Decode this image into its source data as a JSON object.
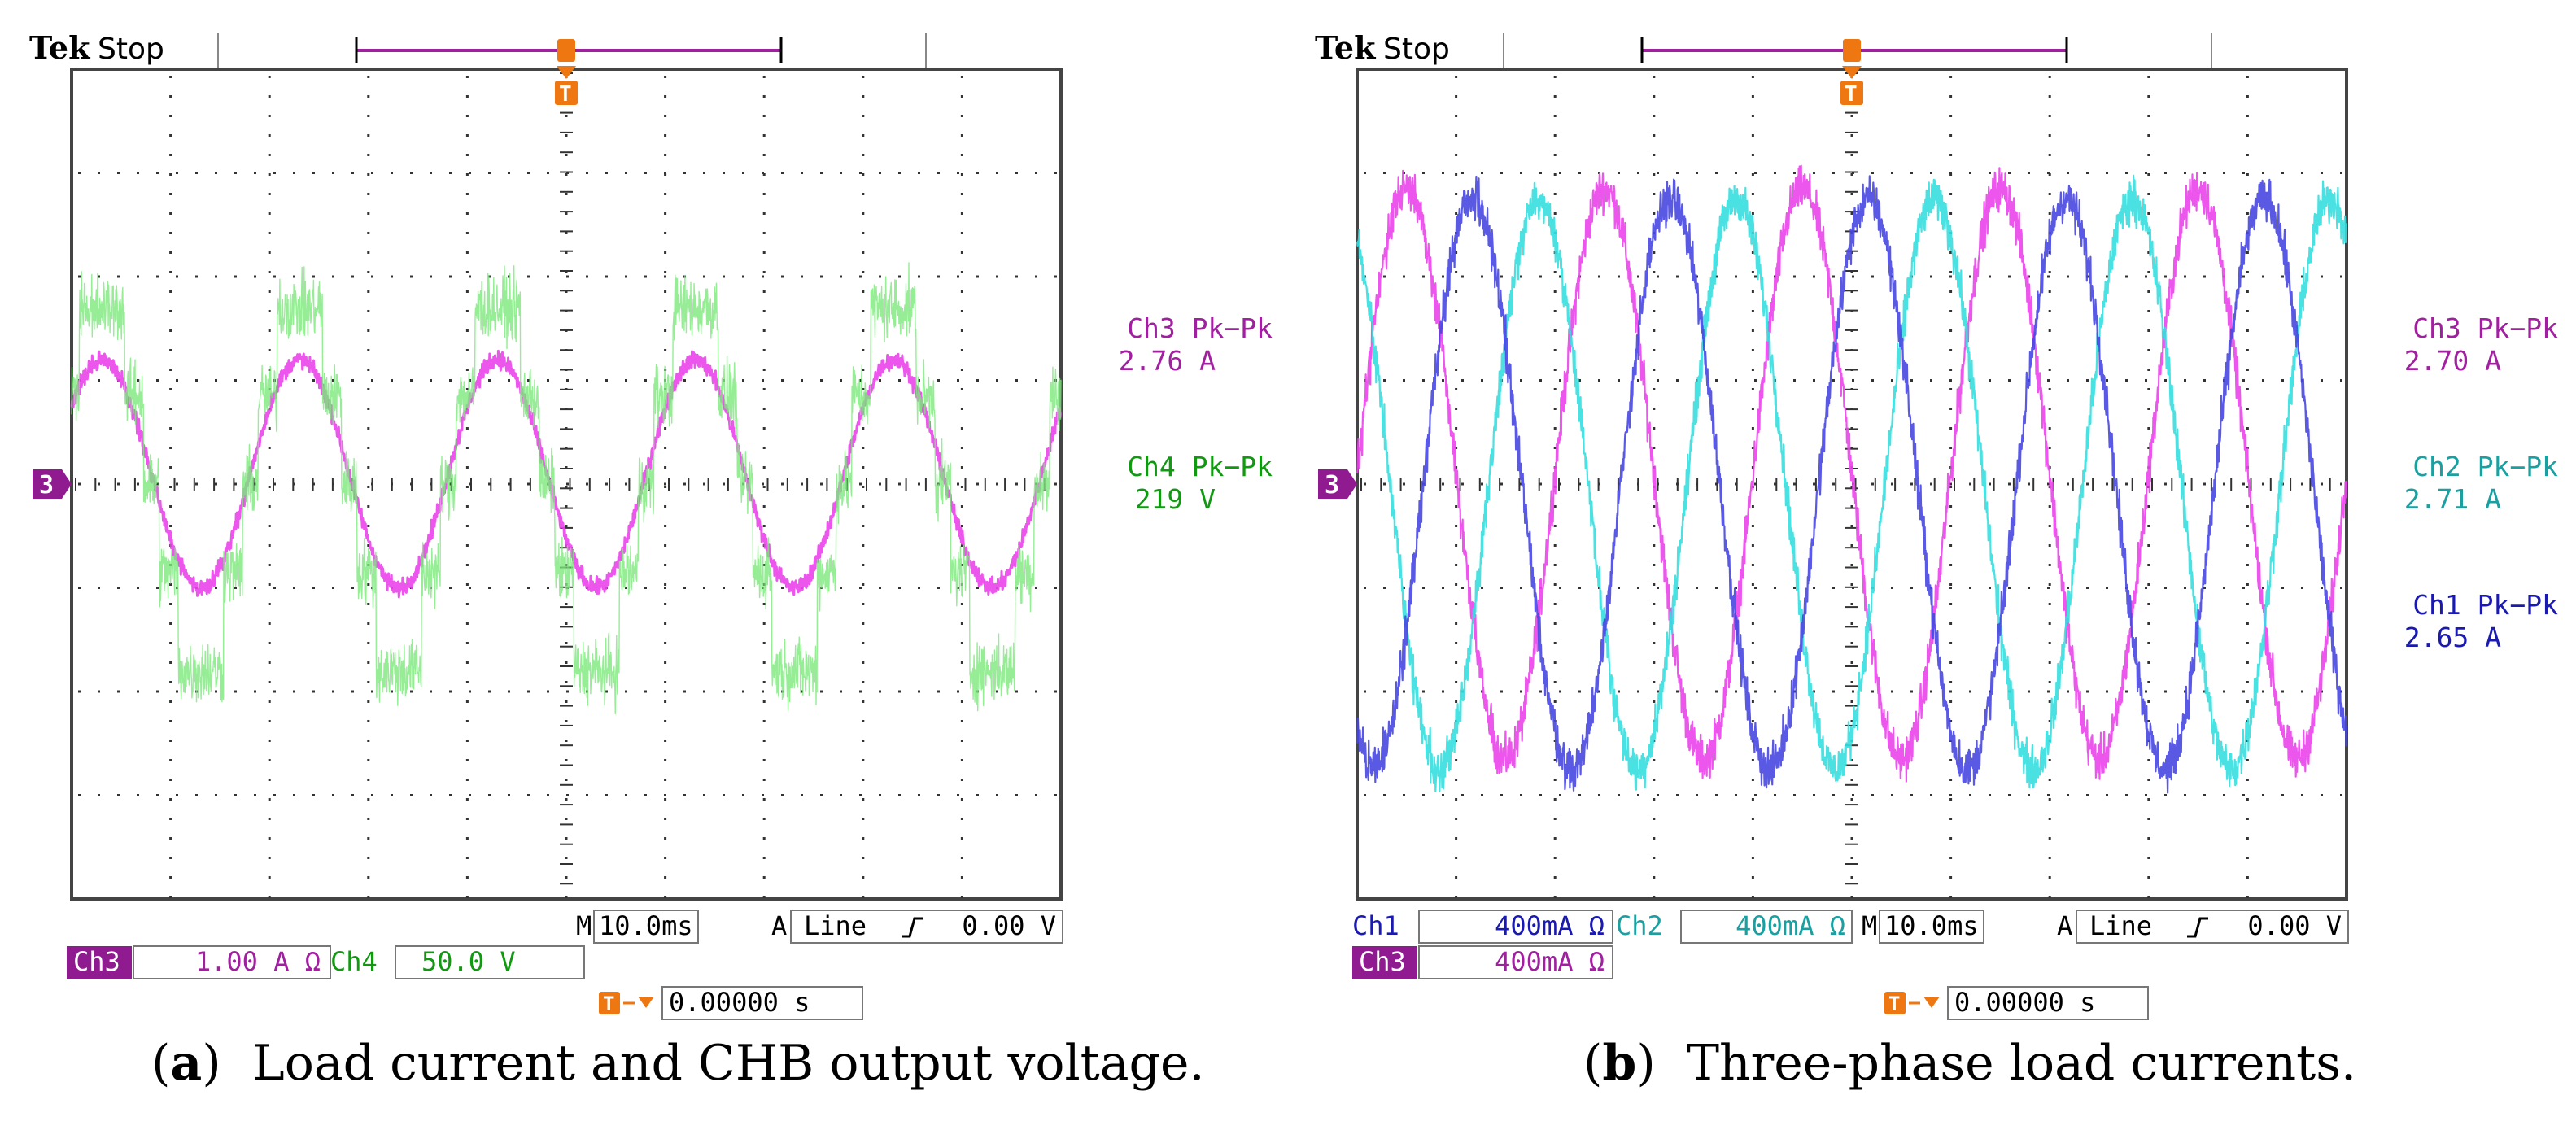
{
  "colors": {
    "ch1": "#4747e0",
    "ch2": "#35dede",
    "ch3": "#ea44ea",
    "ch4": "#22aa22",
    "ch3_text": "#a020a0",
    "ch3_badge": "#901a90",
    "ch4_text": "#119911",
    "ch4_trace": "#7ce87c",
    "ch1_text": "#1a1ab0",
    "ch2_text": "#1aa0a0",
    "trigger": "#ee7711",
    "trigger_bar": "#a020a0",
    "grid": "#000000"
  },
  "chart_data": [
    {
      "type": "line",
      "panel_label": "a",
      "caption": "Load current and CHB output voltage.",
      "header": {
        "brand": "Tek",
        "status": "Stop"
      },
      "time_per_div": "10.0ms",
      "divisions": {
        "x": 10,
        "y": 8
      },
      "x_range_ms": [
        0,
        100
      ],
      "trigger": {
        "source": "Line",
        "slope_icon": "rising-edge-icon",
        "level": "0.00 V",
        "mode_letter": "A",
        "timebase_letter": "M",
        "position": "0.00000 s",
        "marker": "T"
      },
      "ground_marker": "3",
      "channel_settings": [
        {
          "name": "Ch3",
          "scale": "1.00 A Ω"
        },
        {
          "name": "Ch4",
          "scale": "50.0 V"
        }
      ],
      "measurements": [
        {
          "label": "Ch3 Pk−Pk",
          "value": "2.76 A",
          "color_key": "ch3_text"
        },
        {
          "label": "Ch4 Pk−Pk",
          "value": "219 V",
          "color_key": "ch4_text"
        }
      ],
      "series": [
        {
          "name": "Ch3",
          "kind": "sine",
          "color_key": "ch3",
          "amp_div": 1.1,
          "offset_div": 0.1,
          "period_ms": 20,
          "phase_deg": 35,
          "noise_div": 0.12,
          "width": 3
        },
        {
          "name": "Ch4",
          "kind": "stepped",
          "color_key": "ch4_trace",
          "levels_div": [
            1.7,
            0.85,
            0,
            -0.85,
            -1.8
          ],
          "period_ms": 20,
          "phase_deg": 35,
          "noise_div": 0.45,
          "width": 1.4
        }
      ]
    },
    {
      "type": "line",
      "panel_label": "b",
      "caption": "Three-phase load currents.",
      "header": {
        "brand": "Tek",
        "status": "Stop"
      },
      "time_per_div": "10.0ms",
      "divisions": {
        "x": 10,
        "y": 8
      },
      "x_range_ms": [
        0,
        100
      ],
      "trigger": {
        "source": "Line",
        "slope_icon": "rising-edge-icon",
        "level": "0.00 V",
        "mode_letter": "A",
        "timebase_letter": "M",
        "position": "0.00000 s",
        "marker": "T"
      },
      "ground_marker": "3",
      "channel_settings": [
        {
          "name": "Ch1",
          "scale": "400mA Ω"
        },
        {
          "name": "Ch2",
          "scale": "400mA Ω"
        },
        {
          "name": "Ch3",
          "scale": "400mA Ω"
        }
      ],
      "measurements": [
        {
          "label": "Ch3 Pk−Pk",
          "value": "2.70 A",
          "color_key": "ch3_text"
        },
        {
          "label": "Ch2 Pk−Pk",
          "value": "2.71 A",
          "color_key": "ch2_text"
        },
        {
          "label": "Ch1 Pk−Pk",
          "value": "2.65 A",
          "color_key": "ch1_text"
        }
      ],
      "series": [
        {
          "name": "Ch3",
          "kind": "sine",
          "color_key": "ch3",
          "amp_div": 2.75,
          "offset_div": 0.1,
          "period_ms": 20,
          "phase_deg": 0,
          "noise_div": 0.3,
          "width": 2.2
        },
        {
          "name": "Ch2",
          "kind": "sine",
          "color_key": "ch2",
          "amp_div": 2.75,
          "offset_div": 0.0,
          "period_ms": 20,
          "phase_deg": 120,
          "noise_div": 0.3,
          "width": 2.2
        },
        {
          "name": "Ch1",
          "kind": "sine",
          "color_key": "ch1",
          "amp_div": 2.75,
          "offset_div": 0.0,
          "period_ms": 20,
          "phase_deg": 240,
          "noise_div": 0.3,
          "width": 2.2
        }
      ]
    }
  ]
}
